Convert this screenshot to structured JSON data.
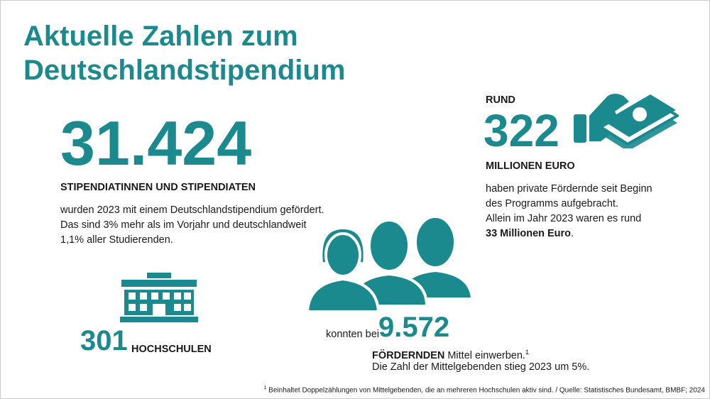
{
  "title": {
    "lines": [
      "Aktuelle Zahlen zum",
      "Deutschlandstipendium"
    ]
  },
  "stipendiaten": {
    "number": "31.424",
    "label": "STIPENDIATINNEN UND STIPENDIATEN",
    "lines": [
      "wurden 2023 mit einem Deutschlandstipendium gefördert.",
      "Das sind 3% mehr als im Vorjahr und deutschlandweit",
      "1,1% aller Studierenden."
    ]
  },
  "foerdermittel": {
    "prefix": "RUND",
    "number": "322",
    "unit": "MILLIONEN EURO",
    "lines": [
      "haben private Fördernde seit Beginn",
      "des Programms aufgebracht.",
      "Allein im Jahr 2023 waren es rund"
    ],
    "highlight": "33 Millionen Euro",
    "end": "."
  },
  "hochschulen": {
    "number": "301",
    "label": "HOCHSCHULEN"
  },
  "foerdernde": {
    "prefix": "konnten bei",
    "number": "9.572",
    "label": "FÖRDERNDEN",
    "rest": " Mittel einwerben.",
    "note_mark": "1",
    "line2": "Die Zahl der Mittelgebenden stieg 2023 um 5%."
  },
  "footnote": {
    "mark": "1",
    "text": " Beinhaltet Doppelzählungen von Mittelgebenden, die an mehreren Hochschulen aktiv sind. / Quelle: Statistisches Bundesamt, BMBF; 2024"
  }
}
